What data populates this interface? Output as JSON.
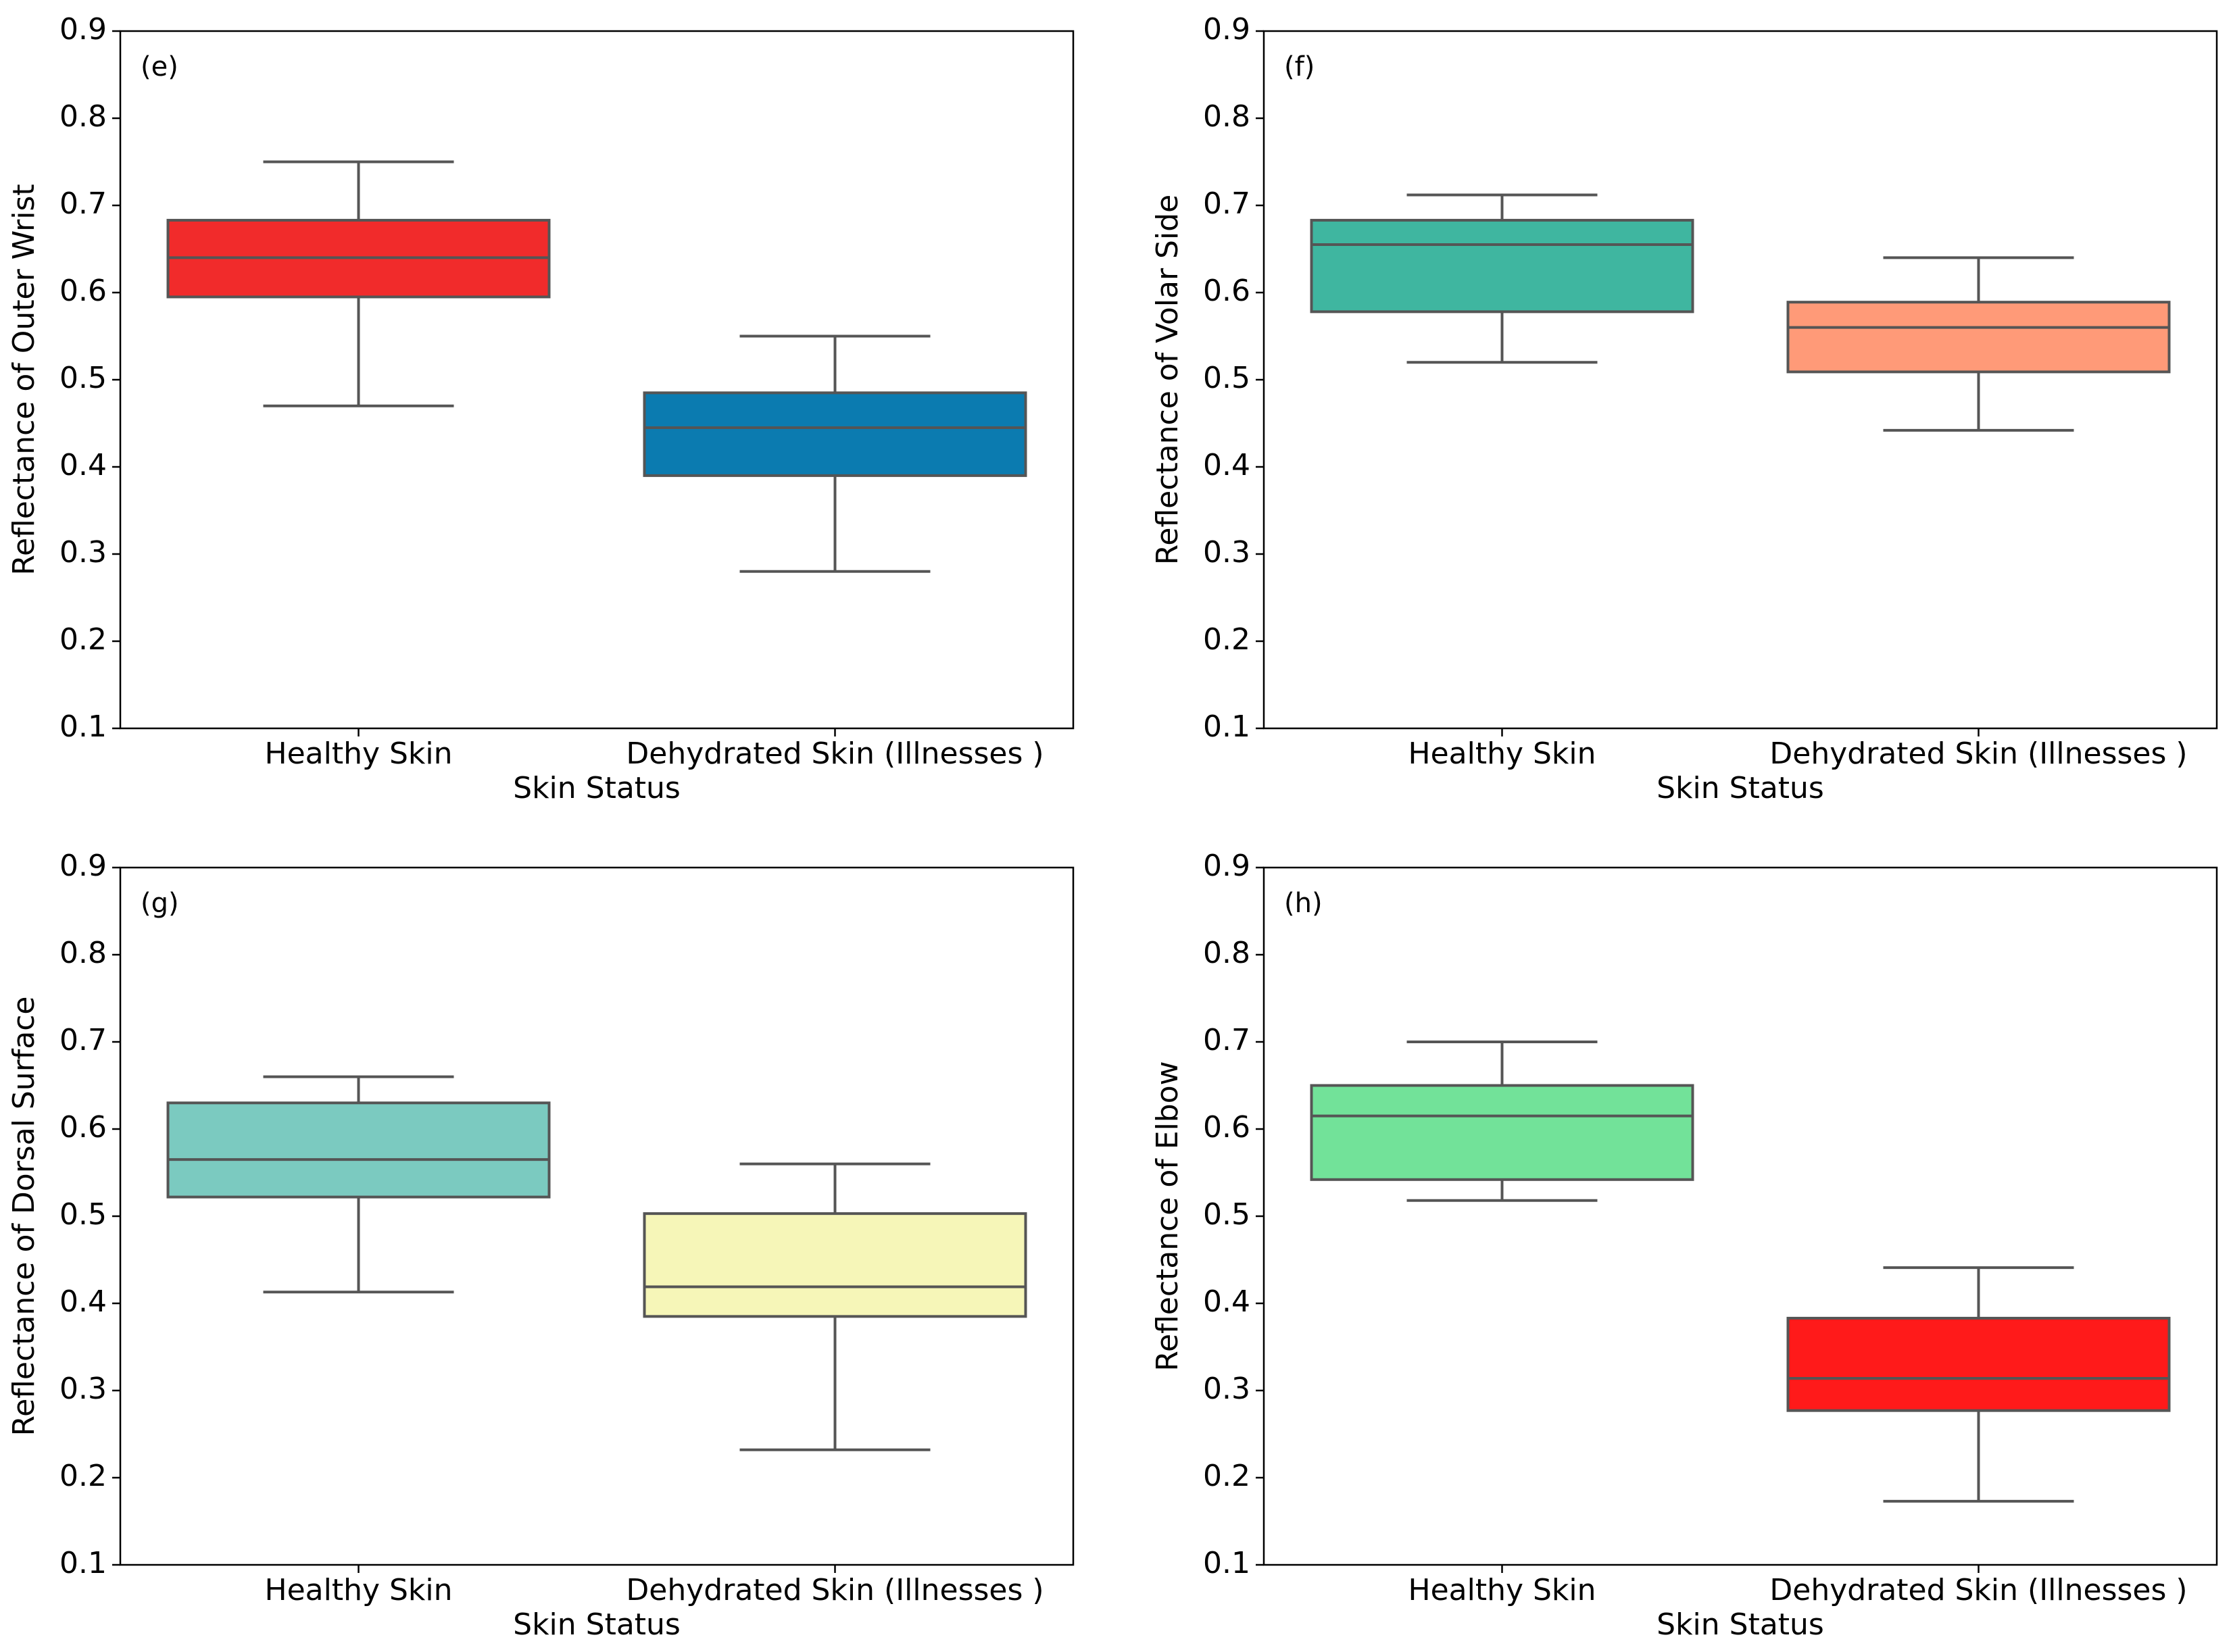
{
  "chart_data": [
    {
      "type": "box",
      "panel_label": "(e)",
      "xlabel": "Skin Status",
      "ylabel": "Reflectance of Outer Wrist",
      "ylim": [
        0.1,
        0.9
      ],
      "yticks": [
        "0.1",
        "0.2",
        "0.3",
        "0.4",
        "0.5",
        "0.6",
        "0.7",
        "0.8",
        "0.9"
      ],
      "categories": [
        "Healthy Skin",
        "Dehydrated Skin (Illnesses )"
      ],
      "boxes": [
        {
          "min": 0.47,
          "q1": 0.595,
          "median": 0.64,
          "q3": 0.683,
          "max": 0.75,
          "color": "#F12B2B"
        },
        {
          "min": 0.28,
          "q1": 0.39,
          "median": 0.445,
          "q3": 0.485,
          "max": 0.55,
          "color": "#0B7BB0"
        }
      ]
    },
    {
      "type": "box",
      "panel_label": "(f)",
      "xlabel": "Skin Status",
      "ylabel": "Reflectance of Volar Side",
      "ylim": [
        0.1,
        0.9
      ],
      "yticks": [
        "0.1",
        "0.2",
        "0.3",
        "0.4",
        "0.5",
        "0.6",
        "0.7",
        "0.8",
        "0.9"
      ],
      "categories": [
        "Healthy Skin",
        "Dehydrated Skin (Illnesses )"
      ],
      "boxes": [
        {
          "min": 0.52,
          "q1": 0.578,
          "median": 0.655,
          "q3": 0.683,
          "max": 0.712,
          "color": "#3FB6A0"
        },
        {
          "min": 0.442,
          "q1": 0.509,
          "median": 0.56,
          "q3": 0.589,
          "max": 0.64,
          "color": "#FF9A78"
        }
      ]
    },
    {
      "type": "box",
      "panel_label": "(g)",
      "xlabel": "Skin Status",
      "ylabel": "Reflectance of Dorsal Surface",
      "ylim": [
        0.1,
        0.9
      ],
      "yticks": [
        "0.1",
        "0.2",
        "0.3",
        "0.4",
        "0.5",
        "0.6",
        "0.7",
        "0.8",
        "0.9"
      ],
      "categories": [
        "Healthy Skin",
        "Dehydrated Skin (Illnesses )"
      ],
      "boxes": [
        {
          "min": 0.413,
          "q1": 0.522,
          "median": 0.565,
          "q3": 0.63,
          "max": 0.66,
          "color": "#7BCAC0"
        },
        {
          "min": 0.232,
          "q1": 0.385,
          "median": 0.419,
          "q3": 0.503,
          "max": 0.56,
          "color": "#F6F6B8"
        }
      ]
    },
    {
      "type": "box",
      "panel_label": "(h)",
      "xlabel": "Skin Status",
      "ylabel": "Reflectance of Elbow",
      "ylim": [
        0.1,
        0.9
      ],
      "yticks": [
        "0.1",
        "0.2",
        "0.3",
        "0.4",
        "0.5",
        "0.6",
        "0.7",
        "0.8",
        "0.9"
      ],
      "categories": [
        "Healthy Skin",
        "Dehydrated Skin (Illnesses )"
      ],
      "boxes": [
        {
          "min": 0.518,
          "q1": 0.542,
          "median": 0.615,
          "q3": 0.65,
          "max": 0.7,
          "color": "#72E299"
        },
        {
          "min": 0.173,
          "q1": 0.277,
          "median": 0.314,
          "q3": 0.383,
          "max": 0.441,
          "color": "#FF1A1A"
        }
      ]
    }
  ]
}
